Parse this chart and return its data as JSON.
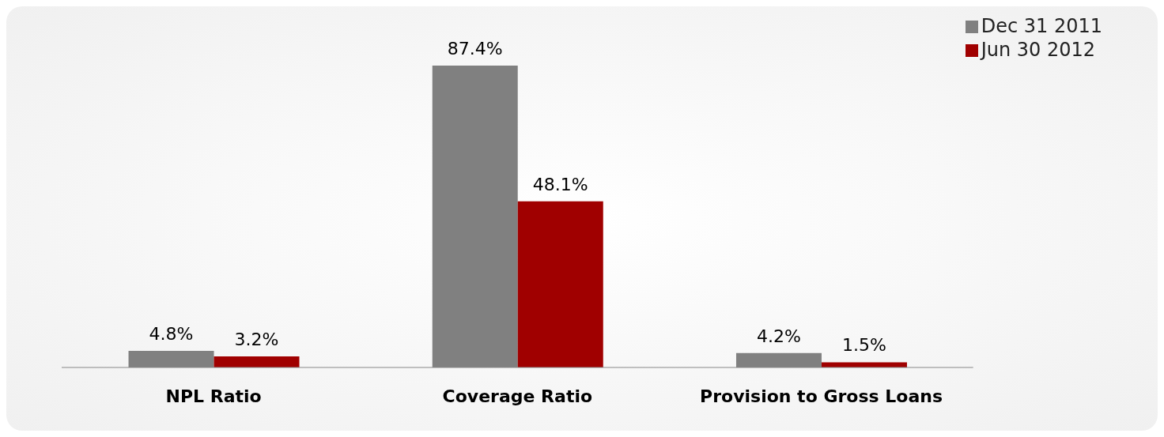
{
  "chart_data": {
    "type": "bar",
    "categories": [
      "NPL Ratio",
      "Coverage Ratio",
      "Provision to Gross Loans"
    ],
    "series": [
      {
        "name": "Dec 31 2011",
        "color": "#808080",
        "values": [
          4.8,
          87.4,
          4.2
        ],
        "value_labels": [
          "4.8%",
          "87.4%",
          "4.2%"
        ]
      },
      {
        "name": "Jun 30 2012",
        "color": "#a00000",
        "values": [
          3.2,
          48.1,
          1.5
        ],
        "value_labels": [
          "3.2%",
          "48.1%",
          "1.5%"
        ]
      }
    ],
    "legend": "top right",
    "grid": false
  }
}
